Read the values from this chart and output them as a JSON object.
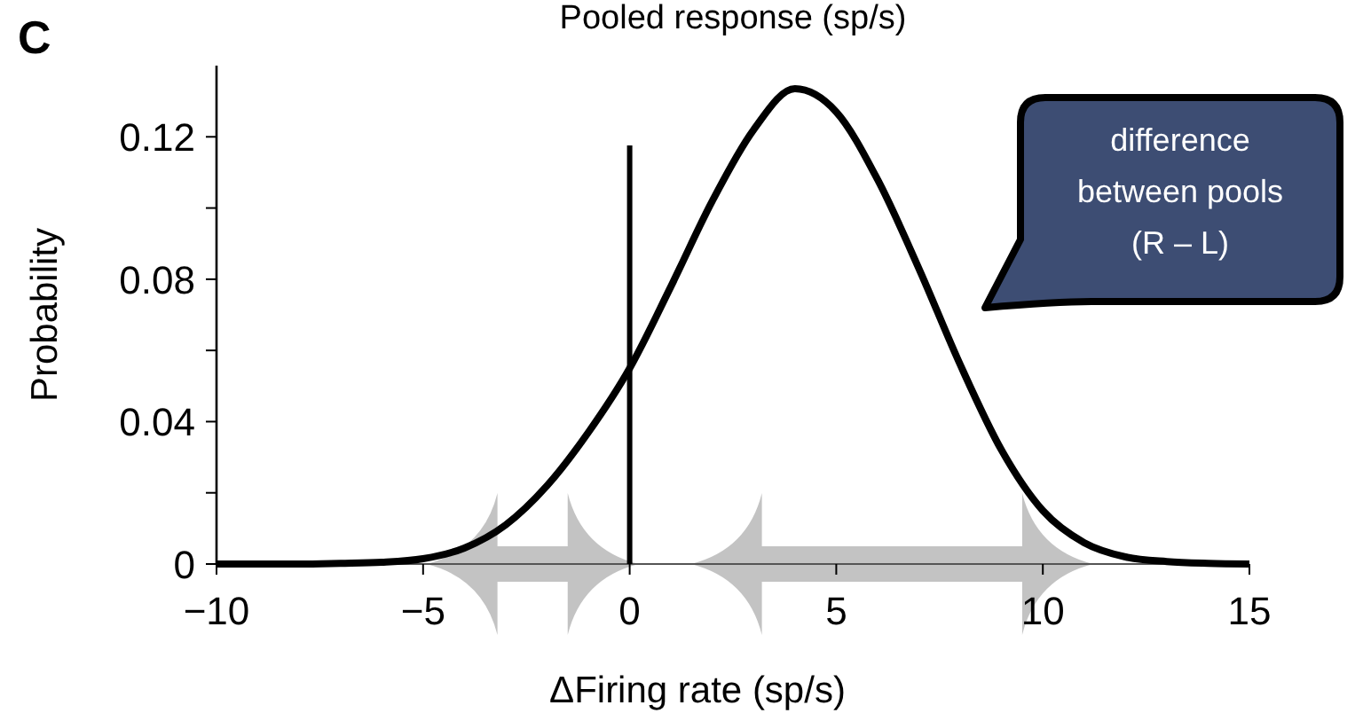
{
  "chart_data": {
    "type": "line",
    "title": "Pooled response (sp/s)",
    "xlabel": "ΔFiring rate (sp/s)",
    "ylabel": "Probability",
    "x": [
      -10,
      -9,
      -8,
      -7,
      -6,
      -5,
      -4,
      -3,
      -2,
      -1,
      0,
      1,
      2,
      3,
      4,
      5,
      6,
      7,
      8,
      9,
      10,
      11,
      12,
      13,
      14,
      15
    ],
    "series": [
      {
        "color": "#000000",
        "values": [
          0,
          0,
          0,
          0.0002,
          0.0005,
          0.0015,
          0.0045,
          0.011,
          0.022,
          0.037,
          0.055,
          0.078,
          0.102,
          0.122,
          0.1335,
          0.127,
          0.108,
          0.083,
          0.056,
          0.032,
          0.015,
          0.006,
          0.002,
          0.0007,
          0.0002,
          0
        ]
      }
    ],
    "ref_lines": [
      {
        "axis": "x",
        "value": 0,
        "color": "#000000",
        "line_style": "solid"
      }
    ],
    "xlim": [
      -10,
      15
    ],
    "xticks": [
      -10,
      -5,
      0,
      5,
      10,
      15
    ],
    "ylim": [
      0,
      0.14
    ],
    "yticks": [
      0,
      {
        "value": 0.02,
        "label": null
      },
      0.04,
      {
        "value": 0.06,
        "label": null
      },
      0.08,
      {
        "value": 0.1,
        "label": null
      },
      0.12
    ],
    "grid": false,
    "marker": "none",
    "line_style": "solid",
    "annotations": [
      "C",
      "difference between pools (R – L)"
    ]
  }
}
